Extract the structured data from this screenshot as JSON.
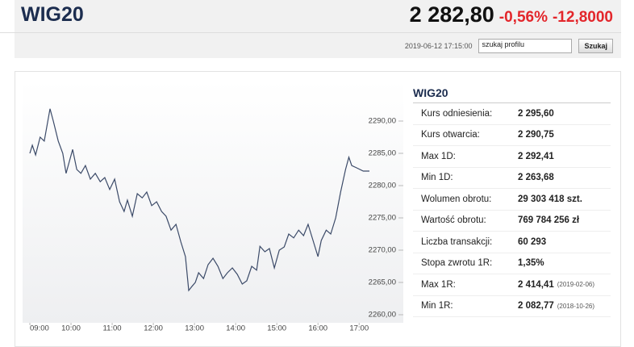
{
  "header": {
    "title": "WIG20",
    "price": "2 282,80",
    "change_pct": "-0,56%",
    "change_abs": "-12,8000",
    "timestamp": "2019-06-12 17:15:00",
    "search_placeholder": "szukaj profilu",
    "search_button": "Szukaj"
  },
  "chart_data": {
    "type": "line",
    "x": [
      9.0,
      9.06,
      9.14,
      9.25,
      9.35,
      9.49,
      9.57,
      9.69,
      9.8,
      9.88,
      9.96,
      10.04,
      10.14,
      10.24,
      10.35,
      10.47,
      10.59,
      10.71,
      10.82,
      10.94,
      11.06,
      11.18,
      11.29,
      11.37,
      11.49,
      11.61,
      11.73,
      11.84,
      11.96,
      12.08,
      12.2,
      12.31,
      12.43,
      12.55,
      12.67,
      12.78,
      12.86,
      12.94,
      13.02,
      13.1,
      13.22,
      13.33,
      13.45,
      13.57,
      13.69,
      13.8,
      13.92,
      14.04,
      14.16,
      14.27,
      14.39,
      14.51,
      14.59,
      14.71,
      14.82,
      14.94,
      15.06,
      15.18,
      15.29,
      15.41,
      15.53,
      15.65,
      15.76,
      15.88,
      16.0,
      16.08,
      16.2,
      16.31,
      16.43,
      16.55,
      16.67,
      16.75,
      16.82,
      16.94,
      17.1,
      17.25
    ],
    "values": [
      2285.0,
      2286.25,
      2284.75,
      2287.5,
      2286.9,
      2291.9,
      2290.0,
      2286.9,
      2285.0,
      2281.9,
      2283.75,
      2285.6,
      2282.5,
      2281.9,
      2283.1,
      2281.0,
      2281.9,
      2280.6,
      2281.25,
      2279.4,
      2281.0,
      2277.5,
      2276.0,
      2277.75,
      2275.25,
      2278.75,
      2278.1,
      2279.0,
      2276.9,
      2277.5,
      2276.0,
      2275.25,
      2273.1,
      2274.0,
      2271.25,
      2269.0,
      2263.75,
      2264.4,
      2265.0,
      2266.5,
      2265.6,
      2267.75,
      2268.75,
      2267.5,
      2265.6,
      2266.5,
      2267.25,
      2266.25,
      2264.75,
      2265.25,
      2267.5,
      2266.9,
      2270.6,
      2269.75,
      2270.25,
      2267.25,
      2270.0,
      2270.5,
      2272.5,
      2271.9,
      2273.1,
      2272.25,
      2274.0,
      2271.5,
      2269.0,
      2271.5,
      2273.1,
      2272.5,
      2275.0,
      2279.0,
      2282.5,
      2284.4,
      2283.1,
      2282.75,
      2282.25,
      2282.25
    ],
    "color": "#3b4a68",
    "xlim": [
      9,
      17.25
    ],
    "xticks": [
      {
        "value": 9,
        "label": "09:00"
      },
      {
        "value": 10,
        "label": "10:00"
      },
      {
        "value": 11,
        "label": "11:00"
      },
      {
        "value": 12,
        "label": "12:00"
      },
      {
        "value": 13,
        "label": "13:00"
      },
      {
        "value": 14,
        "label": "14:00"
      },
      {
        "value": 15,
        "label": "15:00"
      },
      {
        "value": 16,
        "label": "16:00"
      },
      {
        "value": 17,
        "label": "17:00"
      }
    ],
    "ylim": [
      2258.75,
      2296.25
    ],
    "yticks": [
      {
        "value": 2260,
        "label": "2260,00"
      },
      {
        "value": 2265,
        "label": "2265,00"
      },
      {
        "value": 2270,
        "label": "2270,00"
      },
      {
        "value": 2275,
        "label": "2275,00"
      },
      {
        "value": 2280,
        "label": "2280,00"
      },
      {
        "value": 2285,
        "label": "2285,00"
      },
      {
        "value": 2290,
        "label": "2290,00"
      }
    ]
  },
  "table": {
    "title": "WIG20",
    "rows": [
      {
        "label": "Kurs odniesienia:",
        "value": "2 295,60"
      },
      {
        "label": "Kurs otwarcia:",
        "value": "2 290,75"
      },
      {
        "label": "Max 1D:",
        "value": "2 292,41"
      },
      {
        "label": "Min 1D:",
        "value": "2 263,68"
      },
      {
        "label": "Wolumen obrotu:",
        "value": "29 303 418 szt."
      },
      {
        "label": "Wartość obrotu:",
        "value": "769 784 256 zł"
      },
      {
        "label": "Liczba transakcji:",
        "value": "60 293"
      },
      {
        "label": "Stopa zwrotu 1R:",
        "value": "1,35%"
      },
      {
        "label": "Max 1R:",
        "value": "2 414,41",
        "note": "(2019-02-06)"
      },
      {
        "label": "Min 1R:",
        "value": "2 082,77",
        "note": "(2018-10-26)"
      }
    ]
  }
}
